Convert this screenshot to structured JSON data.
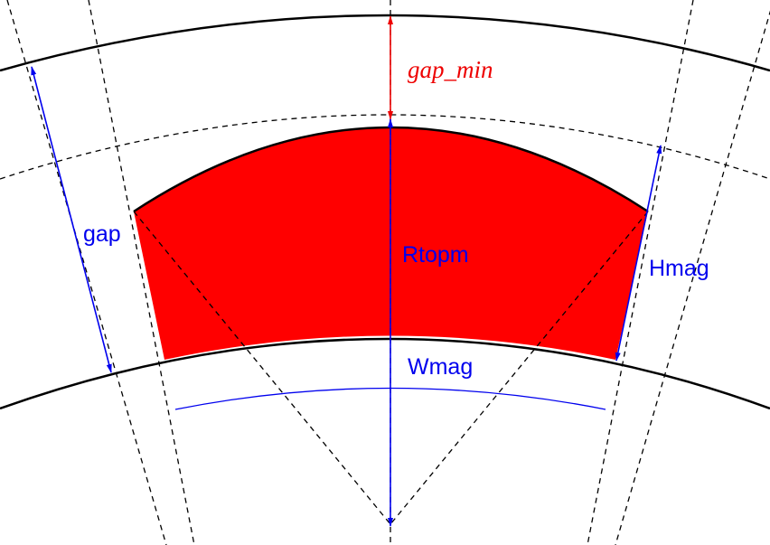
{
  "labels": {
    "gap_min": "gap_min",
    "gap": "gap",
    "rtopm": "Rtopm",
    "hmag": "Hmag",
    "wmag": "Wmag"
  },
  "colors": {
    "magnet_fill": "#ff0000",
    "dimension": "#0000ee",
    "gap_min": "#ee0000",
    "outline": "#000000",
    "construction": "#000000"
  }
}
